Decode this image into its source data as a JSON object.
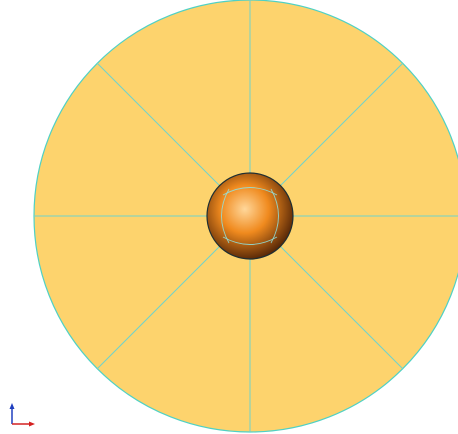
{
  "viewport": {
    "background_color": "#ffffff",
    "disk": {
      "fill_color": "#FDD36D",
      "edge_color": "#4FD1C5",
      "segment_count": 8,
      "segment_line_color": "#6FD3CC"
    },
    "sphere": {
      "highlight_color": "#FFD79A",
      "mid_color": "#F08A1E",
      "shadow_color": "#4A1F05",
      "outline_color": "#1F2F33",
      "seam_color": "#8FE3E0"
    },
    "axis_triad": {
      "vertical_axis_color": "#1F3FBF",
      "horizontal_axis_color": "#D42020"
    }
  }
}
